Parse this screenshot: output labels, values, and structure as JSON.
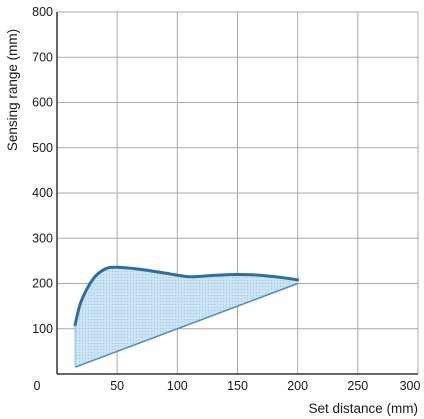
{
  "chart_data": {
    "type": "area",
    "title": "",
    "xlabel": "Set distance (mm)",
    "ylabel": "Sensing range (mm)",
    "xlim": [
      0,
      300
    ],
    "ylim": [
      0,
      800
    ],
    "xticks": [
      0,
      50,
      100,
      150,
      200,
      250,
      300
    ],
    "yticks": [
      100,
      200,
      300,
      400,
      500,
      600,
      700,
      800
    ],
    "grid": true,
    "colors": {
      "grid": "#aaaaaa",
      "fill": "#c9e3f3",
      "upper_line": "#2f6e9c",
      "lower_line": "#4a8fc2"
    },
    "series": [
      {
        "role": "upper",
        "x": [
          15,
          20,
          30,
          40,
          50,
          70,
          90,
          110,
          130,
          150,
          170,
          190,
          200
        ],
        "y": [
          108,
          160,
          210,
          232,
          236,
          231,
          223,
          215,
          218,
          220,
          218,
          212,
          208
        ]
      },
      {
        "role": "lower",
        "x": [
          15,
          200
        ],
        "y": [
          15,
          200
        ]
      }
    ]
  }
}
